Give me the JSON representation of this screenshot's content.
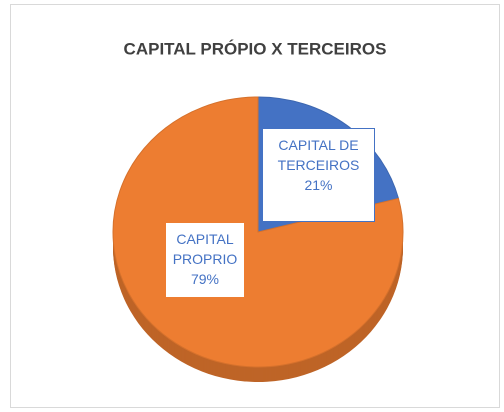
{
  "chart_data": {
    "type": "pie",
    "title": "CAPITAL PRÓPIO X TERCEIROS",
    "categories": [
      "CAPITAL DE TERCEIROS",
      "CAPITAL PROPRIO"
    ],
    "values": [
      21,
      79
    ],
    "value_labels": [
      "21%",
      "79%"
    ],
    "colors": [
      "#4472c4",
      "#ed7d31"
    ]
  }
}
